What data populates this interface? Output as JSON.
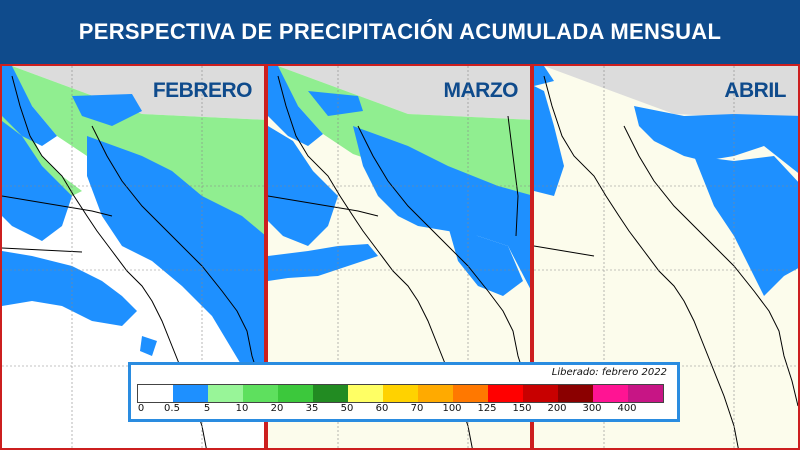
{
  "header": {
    "title": "PERSPECTIVA DE PRECIPITACIÓN ACUMULADA MENSUAL"
  },
  "panels": [
    {
      "month": "FEBRERO"
    },
    {
      "month": "MARZO"
    },
    {
      "month": "ABRIL"
    }
  ],
  "legend": {
    "released": "Liberado: febrero 2022",
    "ticks": [
      "0",
      "0.5",
      "5",
      "10",
      "20",
      "35",
      "50",
      "60",
      "70",
      "100",
      "125",
      "150",
      "200",
      "300",
      "400"
    ],
    "colors": [
      "#ffffff",
      "#1e90ff",
      "#98f598",
      "#5ee05e",
      "#3cc83c",
      "#228b22",
      "#ffff64",
      "#ffd200",
      "#ffaa00",
      "#ff7800",
      "#ff0000",
      "#c80000",
      "#8b0000",
      "#ff1493",
      "#c71585"
    ]
  },
  "map_colors": {
    "blue": "#1e90ff",
    "green": "#90ee90",
    "cream": "#fcfcec",
    "gray": "#dcdcdc",
    "panel_border": "#cc1f1f"
  }
}
